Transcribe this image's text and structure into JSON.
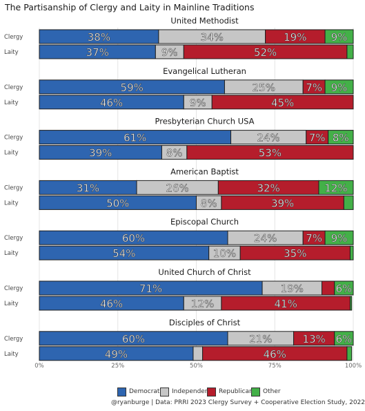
{
  "chart_data": {
    "type": "bar",
    "orientation": "horizontal",
    "stacked": true,
    "title": "The Partisanship of Clergy and Laity in Mainline Traditions",
    "xlim": [
      0,
      100
    ],
    "x_ticks": [
      "0%",
      "25%",
      "50%",
      "75%",
      "100%"
    ],
    "row_labels": [
      "Clergy",
      "Laity"
    ],
    "legend_position": "bottom",
    "series": [
      {
        "name": "Democrat",
        "color": "#2e65b0"
      },
      {
        "name": "Independent",
        "color": "#c6c6c6"
      },
      {
        "name": "Republican",
        "color": "#b51d2c"
      },
      {
        "name": "Other",
        "color": "#43b048"
      }
    ],
    "groups": [
      {
        "name": "United Methodist",
        "clergy": {
          "values": [
            38,
            34,
            19,
            9
          ],
          "labels": [
            "38%",
            "34%",
            "19%",
            "9%"
          ]
        },
        "laity": {
          "values": [
            37,
            9,
            52,
            2
          ],
          "labels": [
            "37%",
            "9%",
            "52%",
            ""
          ]
        }
      },
      {
        "name": "Evangelical Lutheran",
        "clergy": {
          "values": [
            59,
            25,
            7,
            9
          ],
          "labels": [
            "59%",
            "25%",
            "7%",
            "9%"
          ]
        },
        "laity": {
          "values": [
            46,
            9,
            45,
            0.5
          ],
          "labels": [
            "46%",
            "9%",
            "45%",
            ""
          ]
        }
      },
      {
        "name": "Presbyterian Church USA",
        "clergy": {
          "values": [
            61,
            24,
            7,
            8
          ],
          "labels": [
            "61%",
            "24%",
            "7%",
            "8%"
          ]
        },
        "laity": {
          "values": [
            39,
            8,
            53,
            0.5
          ],
          "labels": [
            "39%",
            "8%",
            "53%",
            ""
          ]
        }
      },
      {
        "name": "American Baptist",
        "clergy": {
          "values": [
            31,
            26,
            32,
            12
          ],
          "labels": [
            "31%",
            "26%",
            "32%",
            "12%"
          ]
        },
        "laity": {
          "values": [
            50,
            8,
            39,
            3
          ],
          "labels": [
            "50%",
            "8%",
            "39%",
            ""
          ]
        }
      },
      {
        "name": "Episcopal Church",
        "clergy": {
          "values": [
            60,
            24,
            7,
            9
          ],
          "labels": [
            "60%",
            "24%",
            "7%",
            "9%"
          ]
        },
        "laity": {
          "values": [
            54,
            10,
            35,
            1
          ],
          "labels": [
            "54%",
            "10%",
            "35%",
            ""
          ]
        }
      },
      {
        "name": "United Church of Christ",
        "clergy": {
          "values": [
            71,
            19,
            4,
            6
          ],
          "labels": [
            "71%",
            "19%",
            "",
            "6%"
          ]
        },
        "laity": {
          "values": [
            46,
            12,
            41,
            0.5
          ],
          "labels": [
            "46%",
            "12%",
            "41%",
            ""
          ]
        }
      },
      {
        "name": "Disciples of Christ",
        "clergy": {
          "values": [
            60,
            21,
            13,
            6
          ],
          "labels": [
            "60%",
            "21%",
            "13%",
            "6%"
          ]
        },
        "laity": {
          "values": [
            49,
            3,
            46,
            1.5
          ],
          "labels": [
            "49%",
            "",
            "46%",
            ""
          ]
        }
      }
    ]
  },
  "source": "@ryanburge | Data: PRRI 2023 Clergy Survey + Cooperative Election Study, 2022"
}
